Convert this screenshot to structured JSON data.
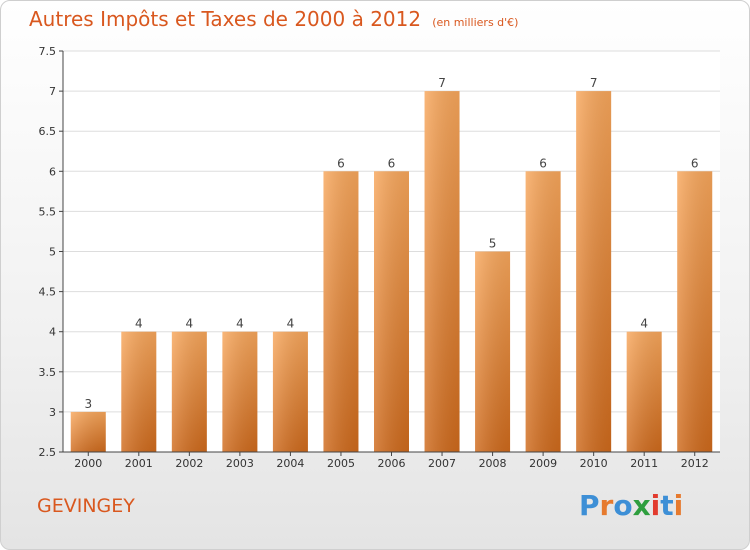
{
  "header": {
    "title": "Autres Impôts et Taxes de 2000 à 2012",
    "subtitle": "(en milliers d'€)"
  },
  "footer": {
    "commune": "GEVINGEY",
    "logo_text": "Proxiti",
    "logo_colors": [
      "#3d8fd6",
      "#e67a2e",
      "#3d8fd6",
      "#2e9e3e",
      "#e23b2e",
      "#3d8fd6",
      "#e67a2e"
    ]
  },
  "colors": {
    "bar_light": "#f8a75c",
    "bar_dark": "#cf6a1c",
    "title": "#d9581f",
    "grid": "#dddddd",
    "axis": "#444444"
  },
  "chart_data": {
    "type": "bar",
    "categories": [
      "2000",
      "2001",
      "2002",
      "2003",
      "2004",
      "2005",
      "2006",
      "2007",
      "2008",
      "2009",
      "2010",
      "2011",
      "2012"
    ],
    "values": [
      3,
      4,
      4,
      4,
      4,
      6,
      6,
      7,
      5,
      6,
      7,
      4,
      6
    ],
    "data_labels": [
      "3",
      "4",
      "4",
      "4",
      "4",
      "6",
      "6",
      "7",
      "5",
      "6",
      "7",
      "4",
      "6"
    ],
    "title": "Autres Impôts et Taxes de 2000 à 2012",
    "xlabel": "",
    "ylabel": "",
    "ylim": [
      2.5,
      7.5
    ],
    "yticks": [
      "2.5",
      "3",
      "3.5",
      "4",
      "4.5",
      "5",
      "5.5",
      "6",
      "6.5",
      "7",
      "7.5"
    ],
    "grid": true
  }
}
